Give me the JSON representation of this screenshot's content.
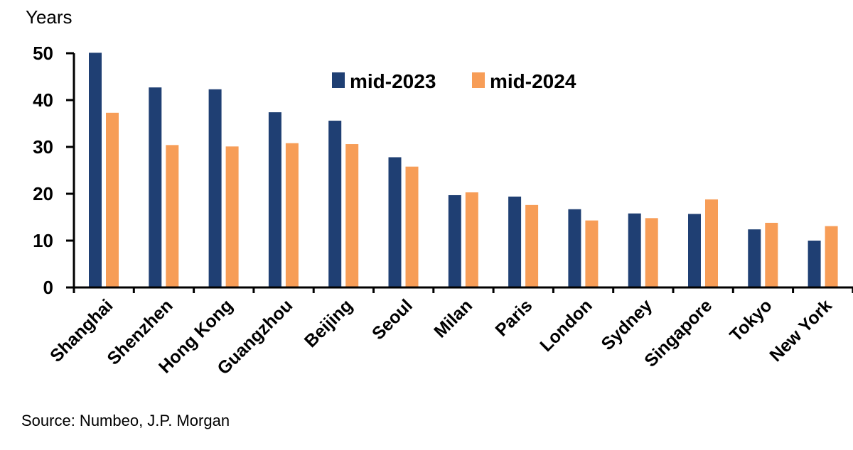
{
  "chart_data": {
    "type": "bar",
    "ylabel": "Years",
    "ylim": [
      0,
      50
    ],
    "yticks": [
      0,
      10,
      20,
      30,
      40,
      50
    ],
    "grid": false,
    "legend_position": "top-center",
    "categories": [
      "Shanghai",
      "Shenzhen",
      "Hong Kong",
      "Guangzhou",
      "Beijing",
      "Seoul",
      "Milan",
      "Paris",
      "London",
      "Sydney",
      "Singapore",
      "Tokyo",
      "New York"
    ],
    "series": [
      {
        "name": "mid-2023",
        "color": "#1f3f73",
        "values": [
          50.1,
          42.7,
          42.3,
          37.4,
          35.6,
          27.8,
          19.7,
          19.4,
          16.7,
          15.8,
          15.7,
          12.4,
          10.0
        ]
      },
      {
        "name": "mid-2024",
        "color": "#f79d57",
        "values": [
          37.3,
          30.4,
          30.1,
          30.8,
          30.6,
          25.8,
          20.3,
          17.6,
          14.3,
          14.8,
          18.8,
          13.8,
          13.1
        ]
      }
    ],
    "source": "Source: Numbeo, J.P. Morgan"
  }
}
